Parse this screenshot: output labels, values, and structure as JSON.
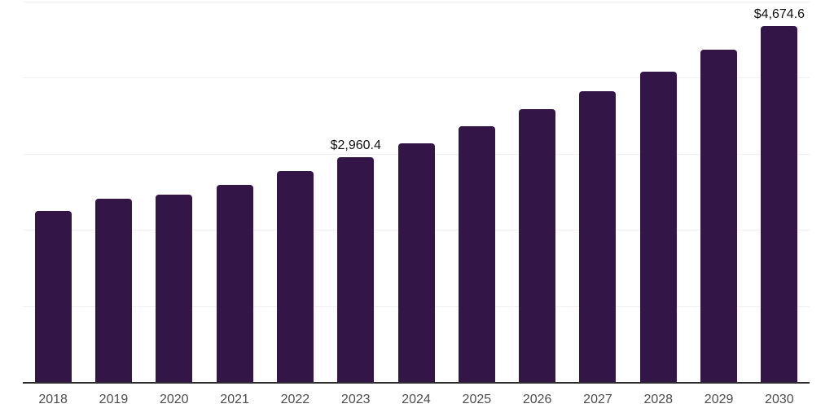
{
  "chart_data": {
    "type": "bar",
    "title": "",
    "xlabel": "",
    "ylabel": "",
    "categories": [
      "2018",
      "2019",
      "2020",
      "2021",
      "2022",
      "2023",
      "2024",
      "2025",
      "2026",
      "2027",
      "2028",
      "2029",
      "2030"
    ],
    "values": [
      2250,
      2410,
      2470,
      2600,
      2780,
      2960.4,
      3140,
      3370,
      3590,
      3820,
      4080,
      4370,
      4674.6
    ],
    "annotations": {
      "2023": "$2,960.4",
      "2030": "$4,674.6"
    },
    "ylim": [
      0,
      5000
    ],
    "gridlines": [
      1000,
      2000,
      3000,
      4000,
      5000
    ],
    "grid": "horizontal-only",
    "y_tick_labels_visible": false,
    "legend_position": "none",
    "colors": {
      "bar": "#331548",
      "gridline": "#f0f0f0",
      "axis_line": "#2e2e2e",
      "x_tick_label": "#4d4d4d",
      "value_label": "#121212",
      "background": "#ffffff"
    }
  }
}
